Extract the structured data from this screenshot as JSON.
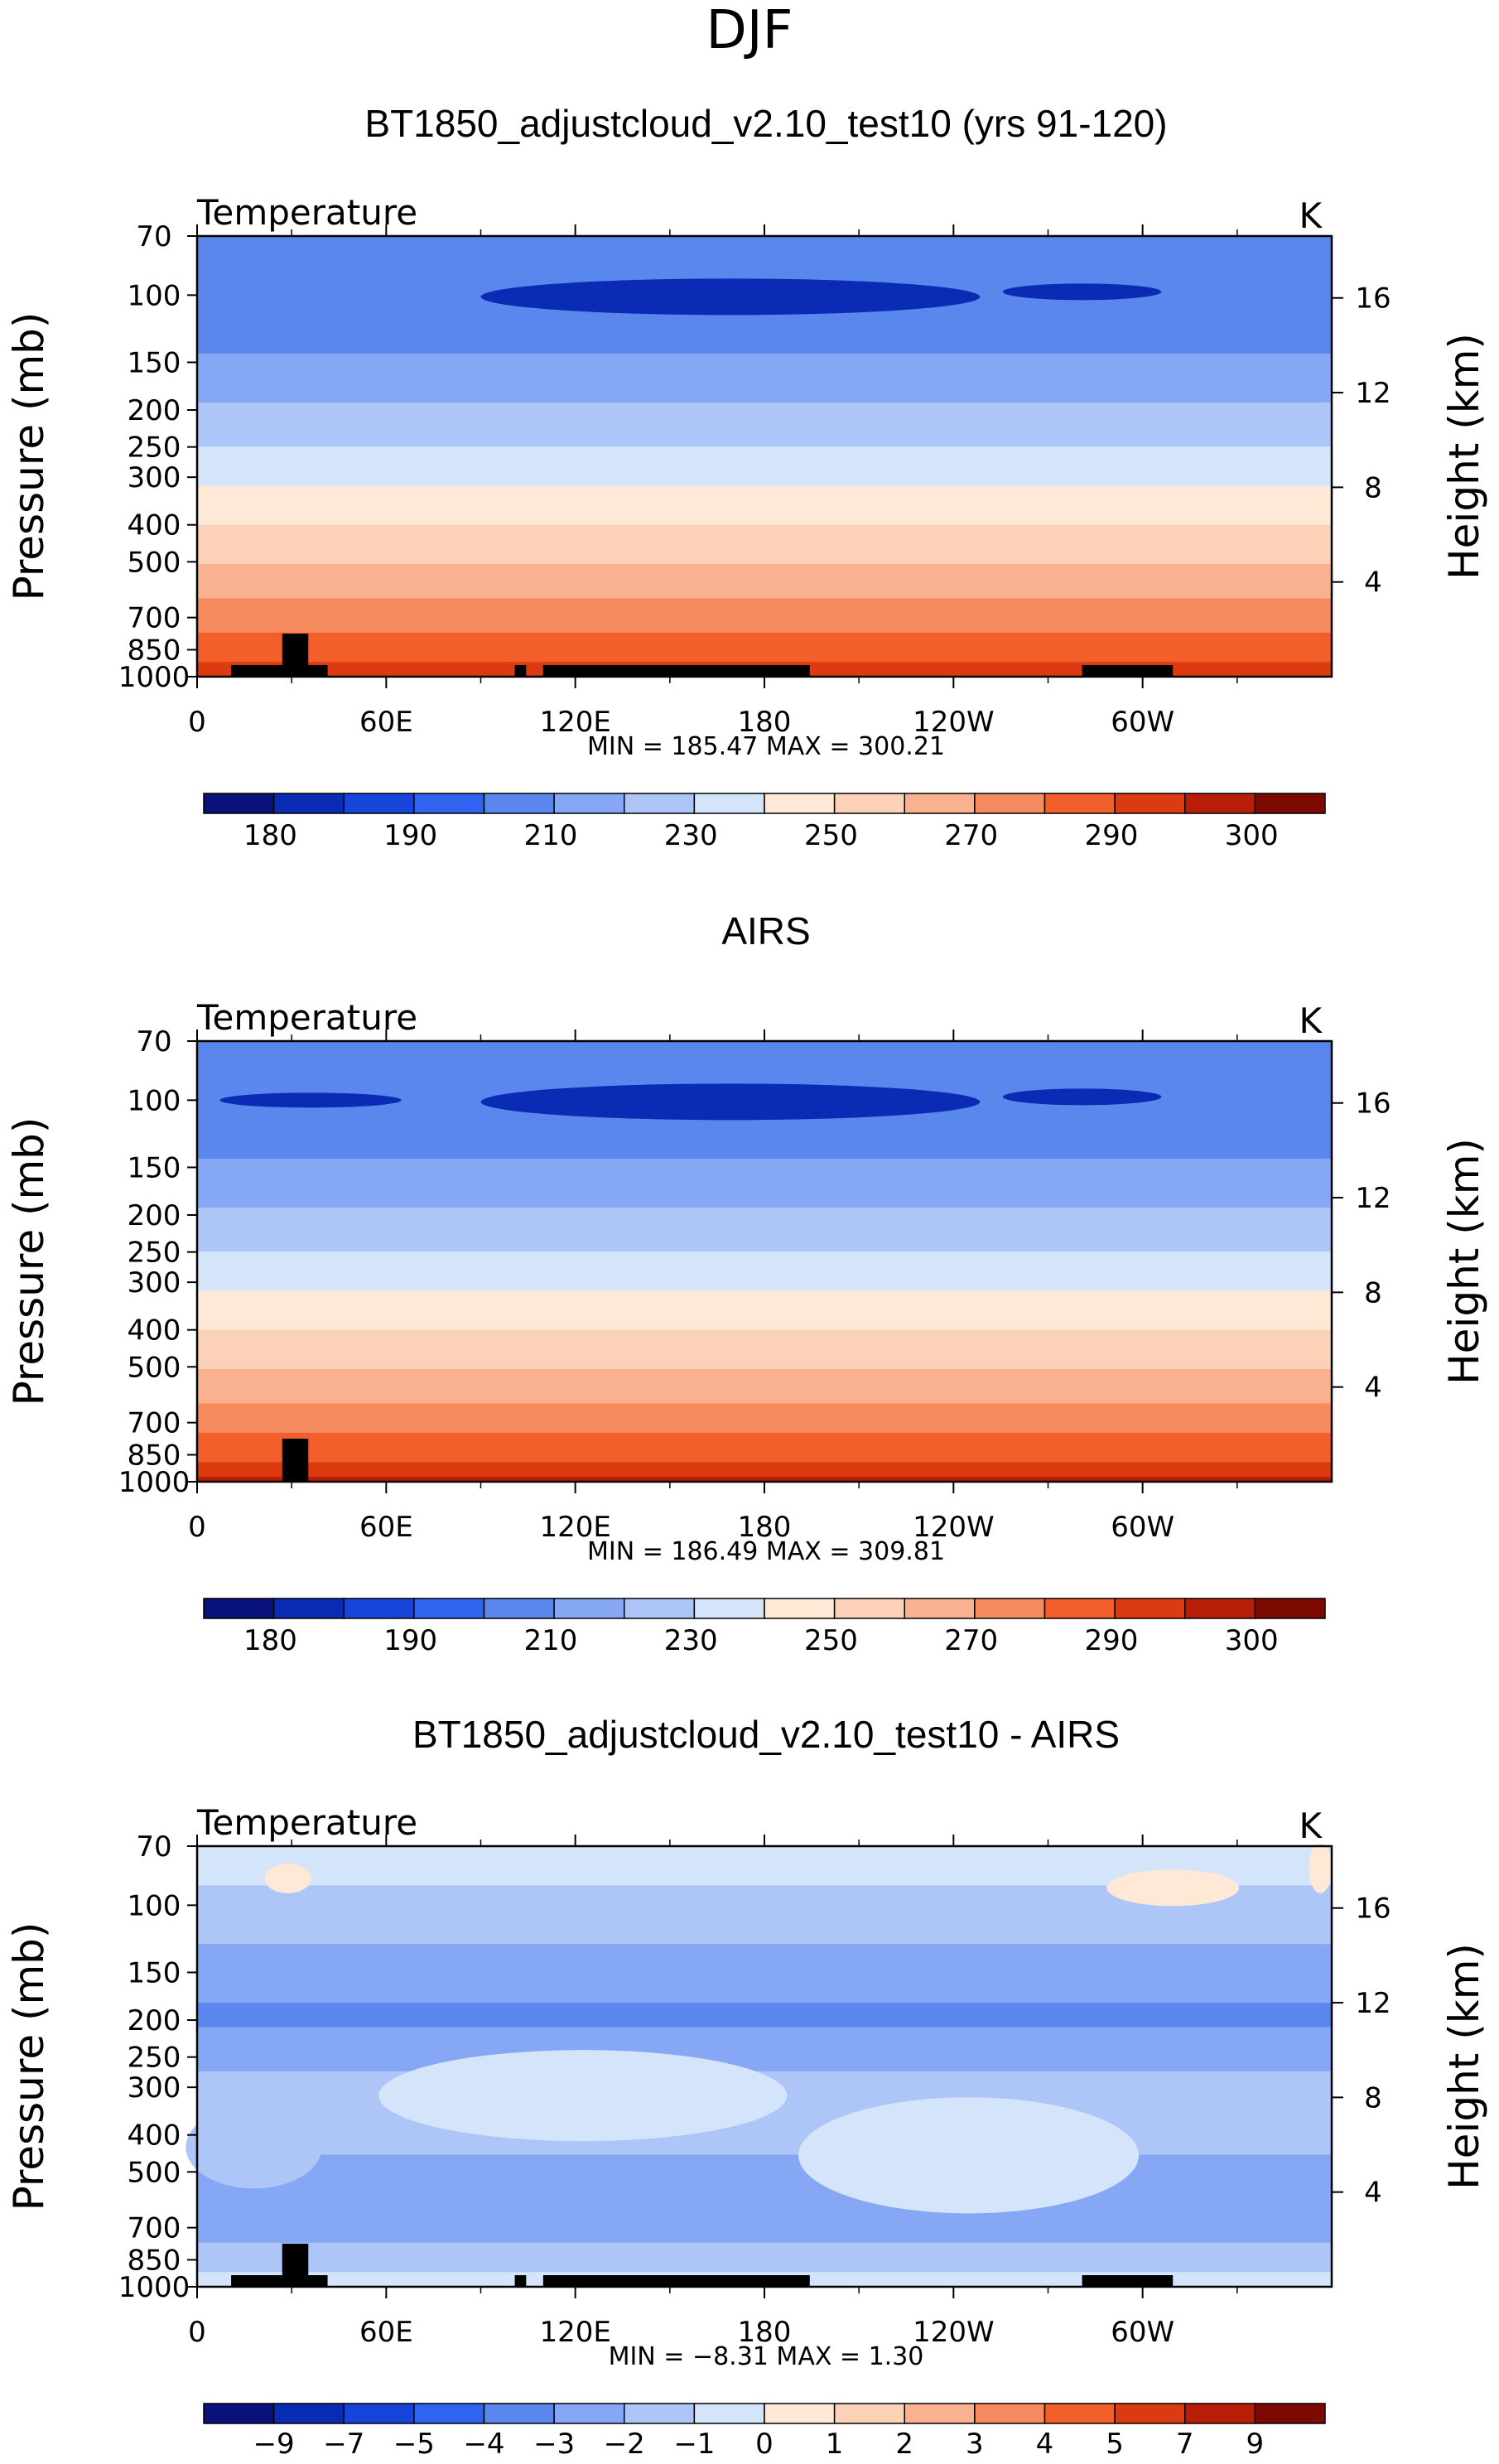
{
  "figure_title": "DJF",
  "chart_data": [
    {
      "type": "heatmap",
      "title": "BT1850_adjustcloud_v2.10_test10 (yrs 91-120)",
      "variable_label": "Temperature",
      "units_label": "K",
      "ylabel": "Pressure (mb)",
      "y2label": "Height (km)",
      "x_ticks": [
        "0",
        "60E",
        "120E",
        "180",
        "120W",
        "60W"
      ],
      "y_ticks": [
        "70",
        "100",
        "150",
        "200",
        "250",
        "300",
        "400",
        "500",
        "700",
        "850",
        "1000"
      ],
      "y2_ticks": [
        "16",
        "12",
        "8",
        "4"
      ],
      "stats_text": "MIN = 185.47   MAX = 300.21",
      "min": 185.47,
      "max": 300.21,
      "contour_levels": [
        180,
        185,
        190,
        200,
        210,
        220,
        230,
        240,
        250,
        260,
        270,
        280,
        290,
        295,
        300
      ],
      "colorbar_labels": [
        "180",
        "190",
        "210",
        "230",
        "250",
        "270",
        "290",
        "300"
      ],
      "colorbar_colors": [
        "#08127a",
        "#0a2bb3",
        "#1745d9",
        "#2f63f0",
        "#5a87ee",
        "#86a8f4",
        "#aec5f7",
        "#d4e4fa",
        "#fde9d6",
        "#fbd1b8",
        "#f9b18f",
        "#f68b60",
        "#f25f2b",
        "#dc3a10",
        "#b81d08",
        "#7c0a03"
      ],
      "band_values_by_pressure": [
        {
          "p": 70,
          "t": 206
        },
        {
          "p": 100,
          "t": 200
        },
        {
          "p": 150,
          "t": 212
        },
        {
          "p": 200,
          "t": 222
        },
        {
          "p": 250,
          "t": 230
        },
        {
          "p": 300,
          "t": 238
        },
        {
          "p": 400,
          "t": 250
        },
        {
          "p": 500,
          "t": 260
        },
        {
          "p": 700,
          "t": 276
        },
        {
          "p": 850,
          "t": 286
        },
        {
          "p": 1000,
          "t": 294
        }
      ]
    },
    {
      "type": "heatmap",
      "title": "AIRS",
      "variable_label": "Temperature",
      "units_label": "K",
      "ylabel": "Pressure (mb)",
      "y2label": "Height (km)",
      "x_ticks": [
        "0",
        "60E",
        "120E",
        "180",
        "120W",
        "60W"
      ],
      "y_ticks": [
        "70",
        "100",
        "150",
        "200",
        "250",
        "300",
        "400",
        "500",
        "700",
        "850",
        "1000"
      ],
      "y2_ticks": [
        "16",
        "12",
        "8",
        "4"
      ],
      "stats_text": "MIN = 186.49   MAX = 309.81",
      "min": 186.49,
      "max": 309.81,
      "contour_levels": [
        180,
        185,
        190,
        200,
        210,
        220,
        230,
        240,
        250,
        260,
        270,
        280,
        290,
        295,
        300
      ],
      "colorbar_labels": [
        "180",
        "190",
        "210",
        "230",
        "250",
        "270",
        "290",
        "300"
      ],
      "colorbar_colors": [
        "#08127a",
        "#0a2bb3",
        "#1745d9",
        "#2f63f0",
        "#5a87ee",
        "#86a8f4",
        "#aec5f7",
        "#d4e4fa",
        "#fde9d6",
        "#fbd1b8",
        "#f9b18f",
        "#f68b60",
        "#f25f2b",
        "#dc3a10",
        "#b81d08",
        "#7c0a03"
      ],
      "band_values_by_pressure": [
        {
          "p": 70,
          "t": 206
        },
        {
          "p": 100,
          "t": 200
        },
        {
          "p": 150,
          "t": 212
        },
        {
          "p": 200,
          "t": 222
        },
        {
          "p": 250,
          "t": 230
        },
        {
          "p": 300,
          "t": 238
        },
        {
          "p": 400,
          "t": 250
        },
        {
          "p": 500,
          "t": 260
        },
        {
          "p": 700,
          "t": 276
        },
        {
          "p": 850,
          "t": 288
        },
        {
          "p": 1000,
          "t": 296
        }
      ]
    },
    {
      "type": "heatmap",
      "title": "BT1850_adjustcloud_v2.10_test10 - AIRS",
      "variable_label": "Temperature",
      "units_label": "K",
      "ylabel": "Pressure (mb)",
      "y2label": "Height (km)",
      "x_ticks": [
        "0",
        "60E",
        "120E",
        "180",
        "120W",
        "60W"
      ],
      "y_ticks": [
        "70",
        "100",
        "150",
        "200",
        "250",
        "300",
        "400",
        "500",
        "700",
        "850",
        "1000"
      ],
      "y2_ticks": [
        "16",
        "12",
        "8",
        "4"
      ],
      "stats_text": "MIN = −8.31   MAX = 1.30",
      "min": -8.31,
      "max": 1.3,
      "contour_levels": [
        -9,
        -7,
        -5,
        -4,
        -3,
        -2,
        -1,
        0,
        1,
        2,
        3,
        4,
        5,
        7,
        9
      ],
      "colorbar_labels": [
        "−9",
        "−7",
        "−5",
        "−4",
        "−3",
        "−2",
        "−1",
        "0",
        "1",
        "2",
        "3",
        "4",
        "5",
        "7",
        "9"
      ],
      "colorbar_colors": [
        "#08127a",
        "#0a2bb3",
        "#1745d9",
        "#2f63f0",
        "#5a87ee",
        "#86a8f4",
        "#aec5f7",
        "#d4e4fa",
        "#fde9d6",
        "#fbd1b8",
        "#f9b18f",
        "#f68b60",
        "#f25f2b",
        "#dc3a10",
        "#b81d08",
        "#7c0a03"
      ],
      "band_values_by_pressure": [
        {
          "p": 70,
          "t": -0.6
        },
        {
          "p": 100,
          "t": -1.2
        },
        {
          "p": 150,
          "t": -2.6
        },
        {
          "p": 200,
          "t": -3.2
        },
        {
          "p": 250,
          "t": -2.4
        },
        {
          "p": 300,
          "t": -1.6
        },
        {
          "p": 400,
          "t": -1.8
        },
        {
          "p": 500,
          "t": -2.2
        },
        {
          "p": 700,
          "t": -2.6
        },
        {
          "p": 850,
          "t": -1.4
        },
        {
          "p": 1000,
          "t": -0.4
        }
      ]
    }
  ]
}
